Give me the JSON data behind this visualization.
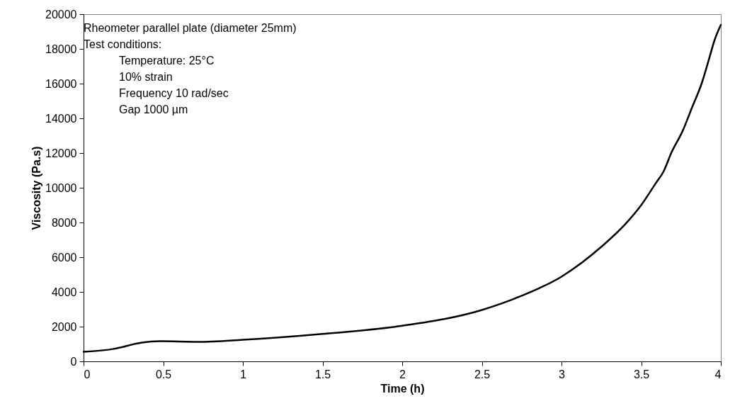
{
  "chart_data": {
    "type": "line",
    "xlabel": "Time (h)",
    "ylabel": "Viscosity (Pa.s)",
    "xlim": [
      0,
      4
    ],
    "xticks": [
      0,
      0.5,
      1,
      1.5,
      2,
      2.5,
      3,
      3.5,
      4
    ],
    "ylim": [
      0,
      20000
    ],
    "yticks": [
      0,
      2000,
      4000,
      6000,
      8000,
      10000,
      12000,
      14000,
      16000,
      18000,
      20000
    ],
    "grid": false,
    "marker": "none",
    "line_style": "solid",
    "annotations": [
      "Rheometer parallel plate (diameter 25mm)",
      "Test conditions:",
      "Temperature: 25°C",
      "10% strain",
      "Frequency 10 rad/sec",
      "Gap 1000 µm"
    ],
    "series": [
      {
        "color": "#000000",
        "x": [
          0,
          0.19,
          0.36,
          0.48,
          0.72,
          1.0,
          1.5,
          2.0,
          2.5,
          2.75,
          3.0,
          3.13,
          3.25,
          3.4,
          3.5,
          3.59,
          3.64,
          3.69,
          3.76,
          3.82,
          3.88,
          3.925,
          3.96,
          4.0
        ],
        "values": [
          550,
          720,
          1070,
          1160,
          1120,
          1240,
          1580,
          2050,
          2960,
          3780,
          4880,
          5700,
          6600,
          7900,
          9000,
          10240,
          10930,
          12030,
          13270,
          14640,
          16020,
          17390,
          18490,
          19390
        ]
      }
    ]
  }
}
